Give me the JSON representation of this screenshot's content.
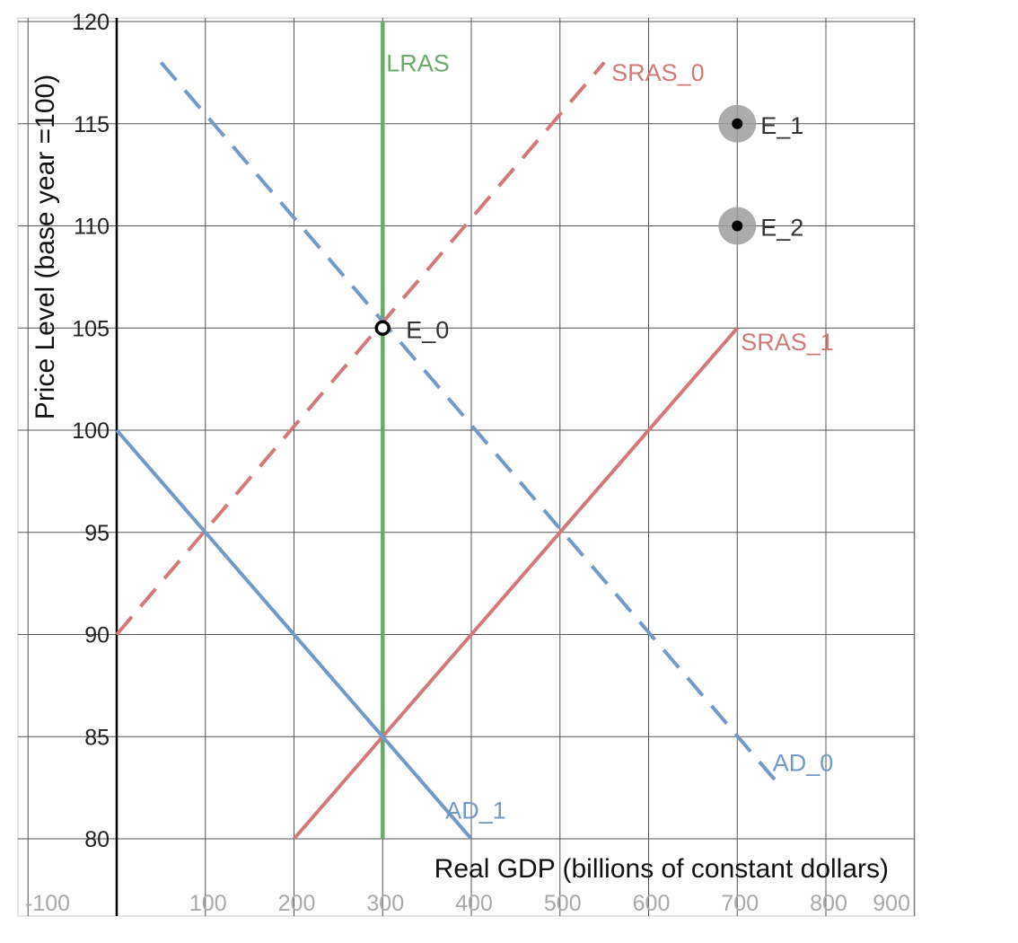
{
  "chart_data": {
    "type": "line",
    "title": "",
    "xlabel": "Real GDP (billions of constant dollars)",
    "ylabel": "Price Level (base year =100)",
    "xlim": [
      -100,
      900
    ],
    "ylim": [
      80,
      120
    ],
    "x_ticks": [
      -100,
      100,
      200,
      300,
      400,
      500,
      600,
      700,
      800,
      900
    ],
    "x_tick_labels": [
      "-100",
      "100",
      "200",
      "300",
      "400",
      "500",
      "600",
      "700",
      "800",
      "900"
    ],
    "y_ticks": [
      80,
      85,
      90,
      95,
      100,
      105,
      110,
      115,
      120
    ],
    "y_tick_labels": [
      "80",
      "85",
      "90",
      "95",
      "100",
      "105",
      "110",
      "115",
      "120"
    ],
    "grid": true,
    "series": [
      {
        "name": "LRAS",
        "color": "#6aaa6a",
        "style": "solid",
        "points": [
          [
            300,
            80
          ],
          [
            300,
            120
          ]
        ],
        "label_at": [
          300,
          118
        ]
      },
      {
        "name": "SRAS_0",
        "color": "#d07a7a",
        "style": "dashed",
        "points": [
          [
            0,
            90
          ],
          [
            550,
            118
          ]
        ],
        "label_at": [
          550,
          117.5
        ]
      },
      {
        "name": "SRAS_1",
        "color": "#d07a7a",
        "style": "solid",
        "points": [
          [
            200,
            80
          ],
          [
            700,
            105
          ]
        ],
        "label_at": [
          700,
          104.7
        ]
      },
      {
        "name": "AD_0",
        "color": "#7399c6",
        "style": "dashed",
        "points": [
          [
            50,
            118
          ],
          [
            750,
            82.5
          ]
        ],
        "label_at": [
          740,
          83.5
        ]
      },
      {
        "name": "AD_1",
        "color": "#7399c6",
        "style": "solid",
        "points": [
          [
            0,
            100
          ],
          [
            400,
            80
          ]
        ],
        "label_at": [
          385,
          81
        ]
      }
    ],
    "points": [
      {
        "name": "E_0",
        "x": 300,
        "y": 105,
        "style": "open"
      },
      {
        "name": "E_1",
        "x": 700,
        "y": 115,
        "style": "filled-halo"
      },
      {
        "name": "E_2",
        "x": 700,
        "y": 110,
        "style": "filled-halo"
      }
    ]
  }
}
